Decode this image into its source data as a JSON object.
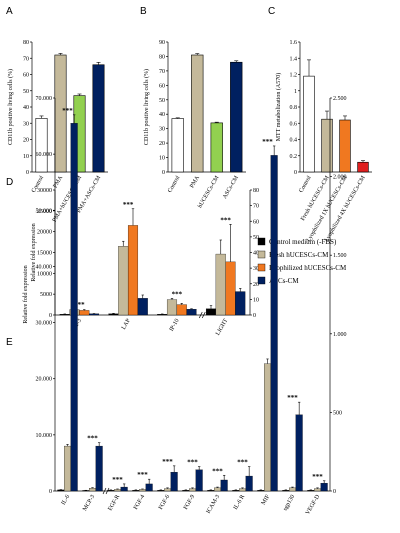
{
  "chart_data": [
    {
      "type": "bar",
      "panel": "A",
      "ylabel": "CD11b positive living cells (%)",
      "categories": [
        "Control",
        "PMA",
        "PMA+hUCESCs-CM",
        "PMA+ASCs-CM"
      ],
      "values": [
        33,
        72,
        47,
        66
      ],
      "errors": [
        1.5,
        1,
        1,
        1.5
      ],
      "colors": [
        "#ffffff",
        "#c4b99a",
        "#92d050",
        "#002060"
      ],
      "ylim": [
        0,
        80
      ],
      "yticks": [
        0,
        10,
        20,
        30,
        40,
        50,
        60,
        70,
        80
      ]
    },
    {
      "type": "bar",
      "panel": "B",
      "ylabel": "CD11b positive living cells (%)",
      "categories": [
        "Control",
        "PMA",
        "hUCESCs-CM",
        "ASCs-CM"
      ],
      "values": [
        37,
        81,
        34,
        76
      ],
      "errors": [
        0.5,
        1,
        0.5,
        1
      ],
      "colors": [
        "#ffffff",
        "#c4b99a",
        "#92d050",
        "#002060"
      ],
      "ylim": [
        0,
        90
      ],
      "yticks": [
        0,
        10,
        20,
        30,
        40,
        50,
        60,
        70,
        80,
        90
      ]
    },
    {
      "type": "bar",
      "panel": "C",
      "ylabel": "MTT metabolization (A570)",
      "categories": [
        "Control",
        "Fresh hUCESCs-CM",
        "Lyophilized 1X hUCESCs-CM",
        "Lyophilized 4X hUCESCs-CM"
      ],
      "values": [
        1.18,
        0.65,
        0.64,
        0.12
      ],
      "errors": [
        0.2,
        0.1,
        0.05,
        0.02
      ],
      "colors": [
        "#ffffff",
        "#c4b99a",
        "#f07820",
        "#e02020"
      ],
      "ylim": [
        0,
        1.6
      ],
      "yticks": [
        0,
        0.2,
        0.4,
        0.6,
        0.8,
        1,
        1.2,
        1.4,
        1.6
      ]
    },
    {
      "type": "grouped-bar",
      "panel": "D",
      "ylabel": "Relative fold expression",
      "categories": [
        "FLT-3",
        "LAP",
        "IP-10",
        "LIGHT"
      ],
      "axis_per_category": [
        "y",
        "y",
        "y",
        "y2"
      ],
      "significance": [
        "***",
        "***",
        "***",
        "***"
      ],
      "series": [
        {
          "name": "Control medium (-FBS)",
          "color": "#000000",
          "values": [
            200,
            300,
            200,
            4
          ],
          "errors": [
            50,
            100,
            50,
            2
          ]
        },
        {
          "name": "Fresh hUCESCs-CM",
          "color": "#c4b99a",
          "values": [
            1300,
            16500,
            3700,
            39
          ],
          "errors": [
            200,
            1200,
            300,
            9
          ]
        },
        {
          "name": "Lyophilized hUCESCs-CM",
          "color": "#f07820",
          "values": [
            1100,
            21500,
            2500,
            34
          ],
          "errors": [
            200,
            4000,
            300,
            24
          ]
        },
        {
          "name": "ASCs-CM",
          "color": "#002060",
          "values": [
            300,
            4000,
            1400,
            15
          ],
          "errors": [
            50,
            800,
            100,
            2
          ]
        }
      ],
      "ylim": [
        0,
        30000
      ],
      "yticks": [
        0,
        5000,
        10000,
        15000,
        20000,
        25000,
        30000
      ],
      "y2lim": [
        0,
        80
      ],
      "y2ticks": [
        0,
        10,
        20,
        30,
        40,
        50,
        60,
        70,
        80
      ],
      "legend": "right"
    },
    {
      "type": "grouped-bar",
      "panel": "E",
      "ylabel": "Relative fold expression",
      "categories": [
        "IL-6",
        "MCP-3",
        "EGF-R",
        "FGF-4",
        "FGF-6",
        "FGF-9",
        "ICAM-3",
        "IL-6 R",
        "MIF",
        "sgp130",
        "VEGF-D"
      ],
      "axis_per_category": [
        "y",
        "y",
        "y2",
        "y2",
        "y2",
        "y2",
        "y2",
        "y2",
        "y2",
        "y2",
        "y2"
      ],
      "significance": [
        "***",
        "***",
        "***",
        "***",
        "***",
        "***",
        "***",
        "***",
        "***",
        "***",
        "***"
      ],
      "series": [
        {
          "name": "Control medium (-FBS)",
          "color": "#000000",
          "values": [
            200,
            100,
            5,
            5,
            5,
            5,
            5,
            5,
            5,
            5,
            5
          ],
          "errors": [
            50,
            30,
            2,
            2,
            2,
            2,
            2,
            2,
            2,
            2,
            2
          ]
        },
        {
          "name": "Fresh hUCESCs-CM",
          "color": "#c4b99a",
          "values": [
            8000,
            500,
            10,
            10,
            15,
            15,
            20,
            15,
            810,
            20,
            15
          ],
          "errors": [
            300,
            100,
            3,
            3,
            5,
            5,
            5,
            5,
            30,
            5,
            5
          ]
        },
        {
          "name": "ASCs-CM",
          "color": "#002060",
          "values": [
            65500,
            8000,
            25,
            45,
            120,
            135,
            70,
            95,
            2135,
            485,
            50
          ],
          "errors": [
            1500,
            600,
            20,
            30,
            40,
            20,
            30,
            60,
            60,
            80,
            15
          ]
        }
      ],
      "ylim": [
        0,
        70000
      ],
      "yticks": [
        0,
        {
          "value": 10000,
          "label": "10.000"
        },
        {
          "value": 20000,
          "label": "20.000"
        },
        {
          "value": 30000,
          "label": "30.000"
        },
        {
          "value": 40000,
          "label": "40.000"
        },
        {
          "value": 50000,
          "label": "50.000"
        },
        {
          "value": 60000,
          "label": "60.000"
        },
        {
          "value": 70000,
          "label": "70.000"
        }
      ],
      "y2lim": [
        0,
        2500
      ],
      "y2ticks": [
        0,
        500,
        {
          "value": 1000,
          "label": "1.000"
        },
        {
          "value": 1500,
          "label": "1.500"
        },
        {
          "value": 2000,
          "label": "2.000"
        },
        {
          "value": 2500,
          "label": "2.500"
        }
      ]
    }
  ]
}
